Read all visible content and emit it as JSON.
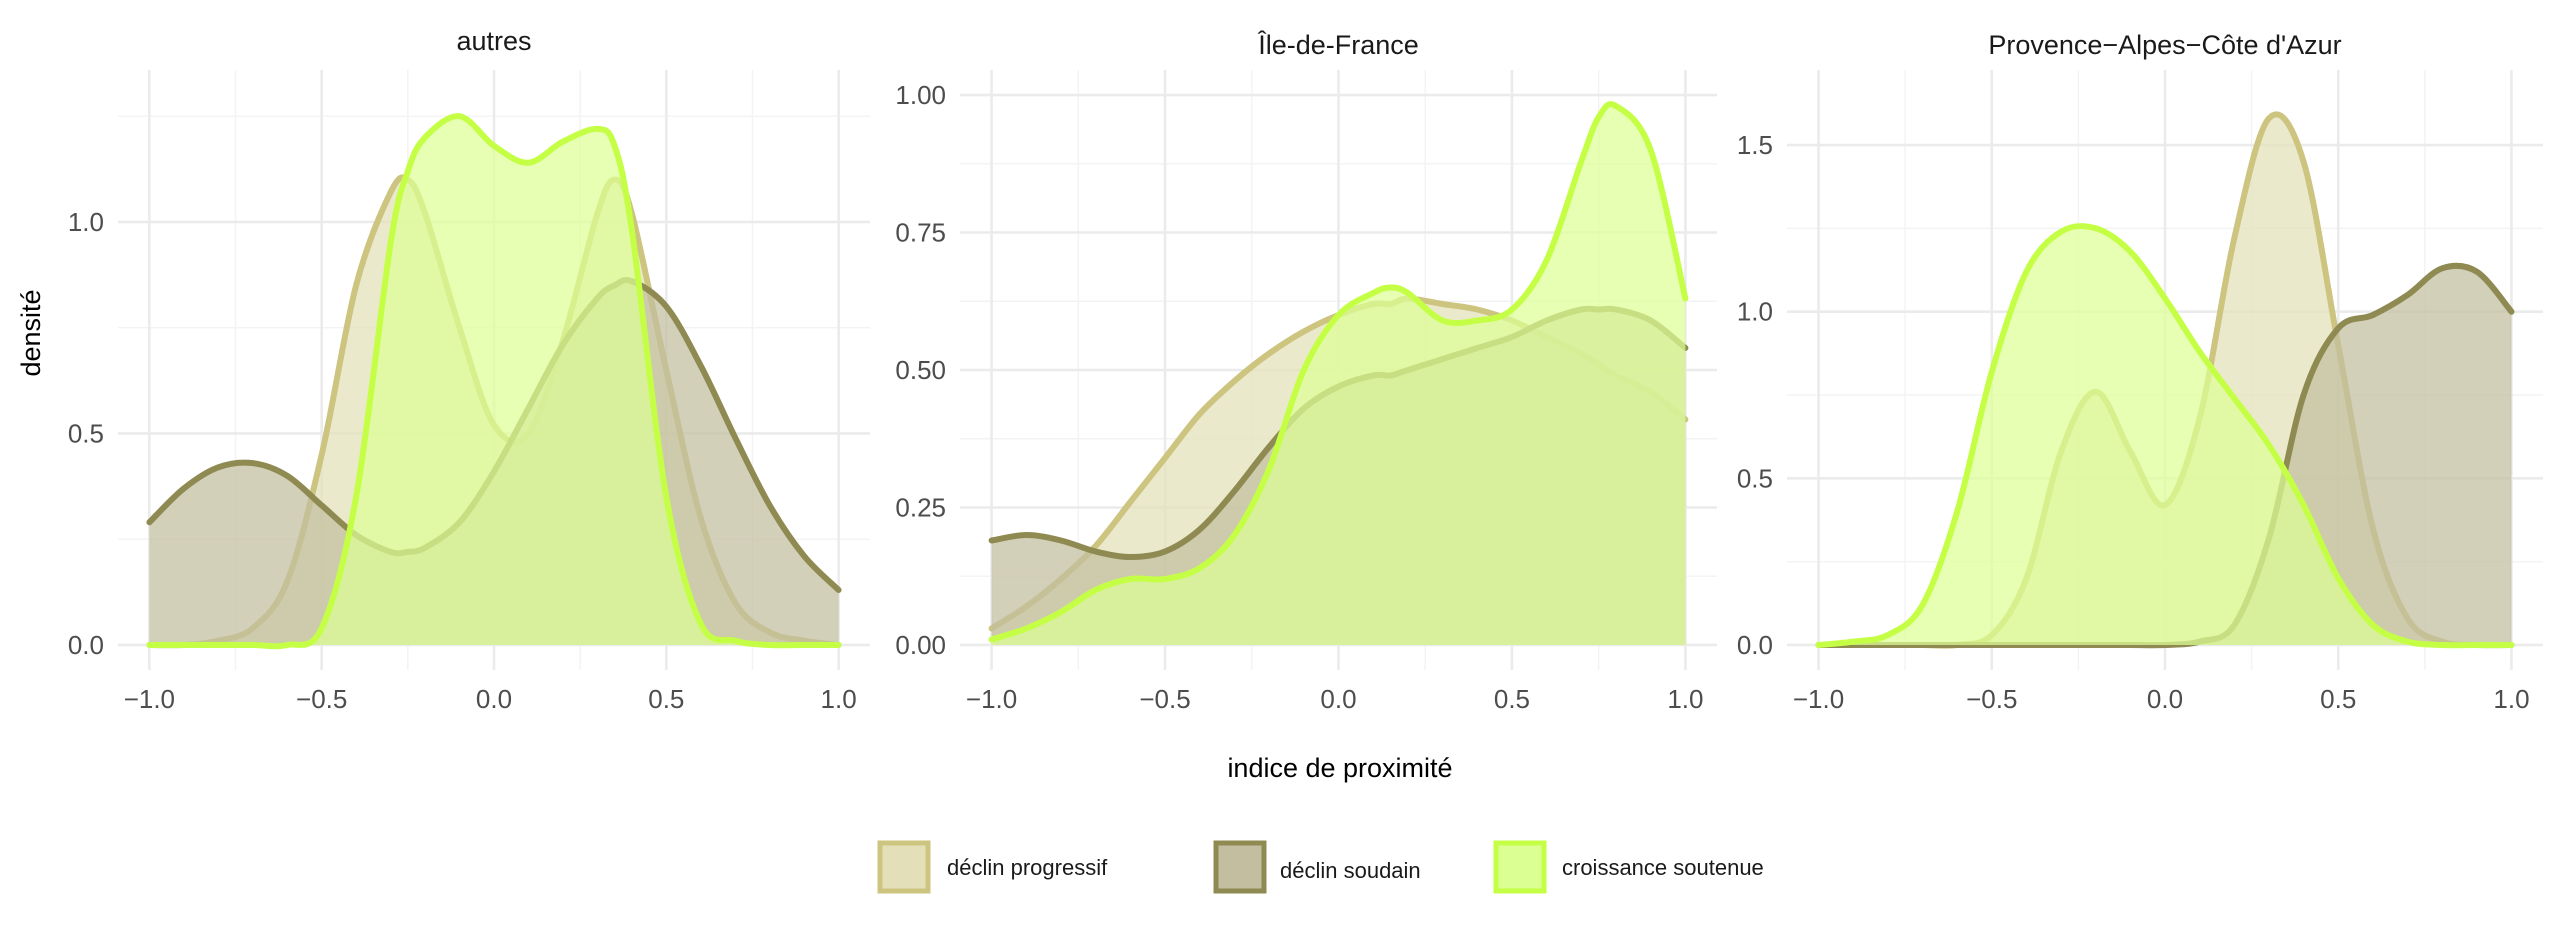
{
  "chart_data": {
    "type": "area",
    "xlabel": "indice de proximité",
    "ylabel": "densité",
    "legend_position": "bottom",
    "grid": true,
    "series_styles": [
      {
        "name": "déclin progressif",
        "fill": "#e3e0b9",
        "stroke": "#ccc47f"
      },
      {
        "name": "déclin soudain",
        "fill": "#c2be9f",
        "stroke": "#8f8a52"
      },
      {
        "name": "croissance soutenue",
        "fill": "#dcff94",
        "stroke": "#c4ff45"
      }
    ],
    "facets": [
      {
        "title": "autres",
        "xlim": [
          -1,
          1
        ],
        "ylim": [
          0,
          1.3
        ],
        "x_ticks": [
          -1.0,
          -0.5,
          0.0,
          0.5,
          1.0
        ],
        "x_tick_labels": [
          "−1.0",
          "−0.5",
          "0.0",
          "0.5",
          "1.0"
        ],
        "y_ticks": [
          0.0,
          0.5,
          1.0
        ],
        "y_tick_labels": [
          "0.0",
          "0.5",
          "1.0"
        ],
        "x": [
          -1.0,
          -0.9,
          -0.8,
          -0.7,
          -0.6,
          -0.5,
          -0.4,
          -0.3,
          -0.25,
          -0.2,
          -0.1,
          0.0,
          0.1,
          0.2,
          0.3,
          0.35,
          0.4,
          0.5,
          0.6,
          0.7,
          0.8,
          0.9,
          1.0
        ],
        "series": [
          {
            "name": "déclin progressif",
            "values": [
              0.0,
              0.0,
              0.01,
              0.04,
              0.15,
              0.45,
              0.85,
              1.07,
              1.1,
              1.02,
              0.75,
              0.52,
              0.5,
              0.72,
              1.02,
              1.1,
              1.02,
              0.65,
              0.3,
              0.1,
              0.03,
              0.01,
              0.0
            ]
          },
          {
            "name": "déclin soudain",
            "values": [
              0.29,
              0.37,
              0.42,
              0.43,
              0.4,
              0.33,
              0.26,
              0.22,
              0.22,
              0.23,
              0.29,
              0.41,
              0.56,
              0.71,
              0.82,
              0.85,
              0.86,
              0.8,
              0.66,
              0.49,
              0.33,
              0.21,
              0.13
            ]
          },
          {
            "name": "croissance soutenue",
            "values": [
              0.0,
              0.0,
              0.0,
              0.0,
              0.0,
              0.04,
              0.35,
              0.95,
              1.12,
              1.2,
              1.25,
              1.18,
              1.14,
              1.19,
              1.22,
              1.18,
              0.98,
              0.35,
              0.05,
              0.01,
              0.0,
              0.0,
              0.0
            ]
          }
        ]
      },
      {
        "title": "Île-de-France",
        "xlim": [
          -1,
          1
        ],
        "ylim": [
          0,
          1.0
        ],
        "x_ticks": [
          -1.0,
          -0.5,
          0.0,
          0.5,
          1.0
        ],
        "x_tick_labels": [
          "−1.0",
          "−0.5",
          "0.0",
          "0.5",
          "1.0"
        ],
        "y_ticks": [
          0.0,
          0.25,
          0.5,
          0.75,
          1.0
        ],
        "y_tick_labels": [
          "0.00",
          "0.25",
          "0.50",
          "0.75",
          "1.00"
        ],
        "x": [
          -1.0,
          -0.9,
          -0.8,
          -0.7,
          -0.6,
          -0.5,
          -0.4,
          -0.3,
          -0.2,
          -0.1,
          0.0,
          0.1,
          0.15,
          0.2,
          0.3,
          0.4,
          0.5,
          0.6,
          0.7,
          0.75,
          0.8,
          0.9,
          1.0
        ],
        "series": [
          {
            "name": "déclin progressif",
            "values": [
              0.03,
              0.07,
              0.12,
              0.18,
              0.26,
              0.34,
              0.42,
              0.48,
              0.53,
              0.57,
              0.6,
              0.62,
              0.62,
              0.63,
              0.62,
              0.61,
              0.59,
              0.56,
              0.53,
              0.51,
              0.49,
              0.46,
              0.41
            ]
          },
          {
            "name": "déclin soudain",
            "values": [
              0.19,
              0.2,
              0.19,
              0.17,
              0.16,
              0.17,
              0.21,
              0.28,
              0.36,
              0.43,
              0.47,
              0.49,
              0.49,
              0.5,
              0.52,
              0.54,
              0.56,
              0.59,
              0.61,
              0.61,
              0.61,
              0.59,
              0.54
            ]
          },
          {
            "name": "croissance soutenue",
            "values": [
              0.01,
              0.03,
              0.06,
              0.1,
              0.12,
              0.12,
              0.14,
              0.2,
              0.32,
              0.5,
              0.6,
              0.64,
              0.65,
              0.64,
              0.59,
              0.59,
              0.61,
              0.7,
              0.88,
              0.96,
              0.98,
              0.9,
              0.63
            ]
          }
        ]
      },
      {
        "title": "Provence−Alpes−Côte d'Azur",
        "xlim": [
          -1,
          1
        ],
        "ylim": [
          0,
          1.65
        ],
        "x_ticks": [
          -1.0,
          -0.5,
          0.0,
          0.5,
          1.0
        ],
        "x_tick_labels": [
          "−1.0",
          "−0.5",
          "0.0",
          "0.5",
          "1.0"
        ],
        "y_ticks": [
          0.0,
          0.5,
          1.0,
          1.5
        ],
        "y_tick_labels": [
          "0.0",
          "0.5",
          "1.0",
          "1.5"
        ],
        "x": [
          -1.0,
          -0.9,
          -0.8,
          -0.7,
          -0.6,
          -0.5,
          -0.4,
          -0.3,
          -0.2,
          -0.1,
          0.0,
          0.1,
          0.2,
          0.3,
          0.4,
          0.5,
          0.6,
          0.7,
          0.8,
          0.9,
          1.0
        ],
        "series": [
          {
            "name": "déclin progressif",
            "values": [
              0.0,
              0.0,
              0.0,
              0.0,
              0.0,
              0.03,
              0.2,
              0.58,
              0.76,
              0.58,
              0.42,
              0.68,
              1.22,
              1.58,
              1.45,
              0.9,
              0.35,
              0.08,
              0.01,
              0.0,
              0.0
            ]
          },
          {
            "name": "déclin soudain",
            "values": [
              0.0,
              0.0,
              0.0,
              0.0,
              0.0,
              0.0,
              0.0,
              0.0,
              0.0,
              0.0,
              0.0,
              0.01,
              0.06,
              0.32,
              0.75,
              0.95,
              0.99,
              1.05,
              1.13,
              1.12,
              1.0
            ]
          },
          {
            "name": "croissance soutenue",
            "values": [
              0.0,
              0.01,
              0.03,
              0.12,
              0.4,
              0.82,
              1.12,
              1.24,
              1.25,
              1.18,
              1.04,
              0.88,
              0.74,
              0.6,
              0.42,
              0.2,
              0.06,
              0.01,
              0.0,
              0.0,
              0.0
            ]
          }
        ]
      }
    ]
  }
}
